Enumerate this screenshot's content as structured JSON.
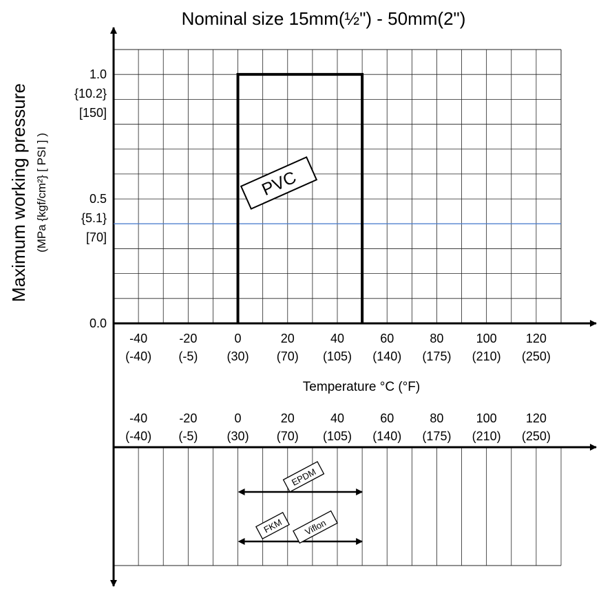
{
  "chart_data": {
    "type": "area",
    "title": "Nominal size 15mm(½\") - 50mm(2\")",
    "ylabel": "Maximum working pressure",
    "ylabel_units": "(MPa {kgf/cm²} [ PSI ] )",
    "xlabel": "Temperature °C (°F)",
    "x_ticks": [
      {
        "c": "-40",
        "f": "(-40)"
      },
      {
        "c": "-20",
        "f": "(-5)"
      },
      {
        "c": "0",
        "f": "(30)"
      },
      {
        "c": "20",
        "f": "(70)"
      },
      {
        "c": "40",
        "f": "(105)"
      },
      {
        "c": "60",
        "f": "(140)"
      },
      {
        "c": "80",
        "f": "(175)"
      },
      {
        "c": "100",
        "f": "(210)"
      },
      {
        "c": "120",
        "f": "(250)"
      }
    ],
    "y_ticks": [
      {
        "mpa": "1.0",
        "kgf": "{10.2}",
        "psi": "[150]"
      },
      {
        "mpa": "0.5",
        "kgf": "{5.1}",
        "psi": "[70]"
      },
      {
        "mpa": "0.0"
      }
    ],
    "xlim": [
      -50,
      130
    ],
    "ylim": [
      0,
      1.1
    ],
    "grid": true,
    "series": [
      {
        "name": "PVC",
        "x": [
          0,
          0,
          50,
          50
        ],
        "y": [
          0,
          1.0,
          1.0,
          0
        ],
        "color": "#000000"
      }
    ],
    "reference_line": {
      "y": 0.4,
      "color": "#4a7fd6"
    },
    "materials": [
      {
        "name": "EPDM",
        "range": [
          0,
          50
        ]
      },
      {
        "name": "FKM",
        "range": [
          0,
          50
        ]
      },
      {
        "name": "Viflon",
        "range": [
          0,
          50
        ]
      }
    ]
  }
}
